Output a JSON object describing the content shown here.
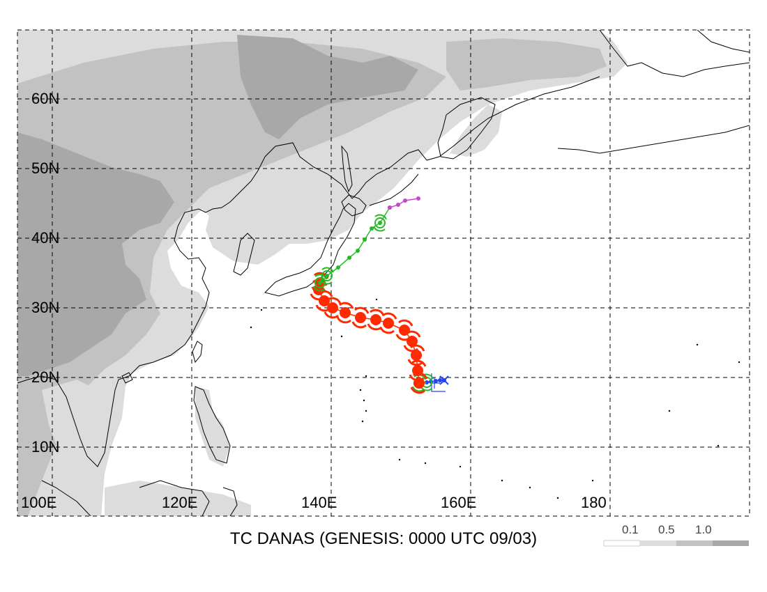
{
  "title": "TC DANAS (GENESIS: 0000 UTC 09/03)",
  "lat_labels": [
    "10N",
    "20N",
    "30N",
    "40N",
    "50N",
    "60N"
  ],
  "lon_labels": [
    "100E",
    "120E",
    "140E",
    "160E",
    "180"
  ],
  "legend": {
    "values": [
      "0.1",
      "0.5",
      "1.0"
    ]
  },
  "colors": {
    "land_light": "#dcdcdc",
    "land_mid": "#c2c2c2",
    "land_dark": "#a8a8a8",
    "track_red": "#ff2a00",
    "track_green": "#22bb22",
    "track_magenta": "#cc44cc",
    "track_blue": "#2244ee"
  },
  "track": {
    "blue": [
      [
        156.2,
        19.6
      ],
      [
        155.6,
        19.6
      ],
      [
        155.0,
        19.5
      ],
      [
        154.3,
        19.4
      ],
      [
        153.7,
        19.3
      ]
    ],
    "green1": [
      [
        153.7,
        19.3
      ],
      [
        152.6,
        19.2
      ]
    ],
    "red": [
      [
        152.6,
        19.2
      ],
      [
        152.4,
        21.0
      ],
      [
        152.2,
        23.2
      ],
      [
        151.6,
        25.2
      ],
      [
        150.5,
        26.8
      ],
      [
        148.2,
        27.8
      ],
      [
        146.4,
        28.3
      ],
      [
        144.2,
        28.6
      ],
      [
        142.0,
        29.3
      ],
      [
        140.2,
        30.0
      ],
      [
        139.0,
        31.0
      ],
      [
        138.2,
        32.6
      ],
      [
        138.4,
        33.6
      ]
    ],
    "green2": [
      [
        138.4,
        33.6
      ],
      [
        139.4,
        34.6
      ],
      [
        141.0,
        35.8
      ],
      [
        142.6,
        37.2
      ],
      [
        143.8,
        38.2
      ],
      [
        144.8,
        39.8
      ],
      [
        145.8,
        41.4
      ],
      [
        147.0,
        42.2
      ],
      [
        148.4,
        44.4
      ]
    ],
    "magenta": [
      [
        148.4,
        44.4
      ],
      [
        149.6,
        44.8
      ],
      [
        150.6,
        45.4
      ],
      [
        152.5,
        45.7
      ]
    ]
  }
}
